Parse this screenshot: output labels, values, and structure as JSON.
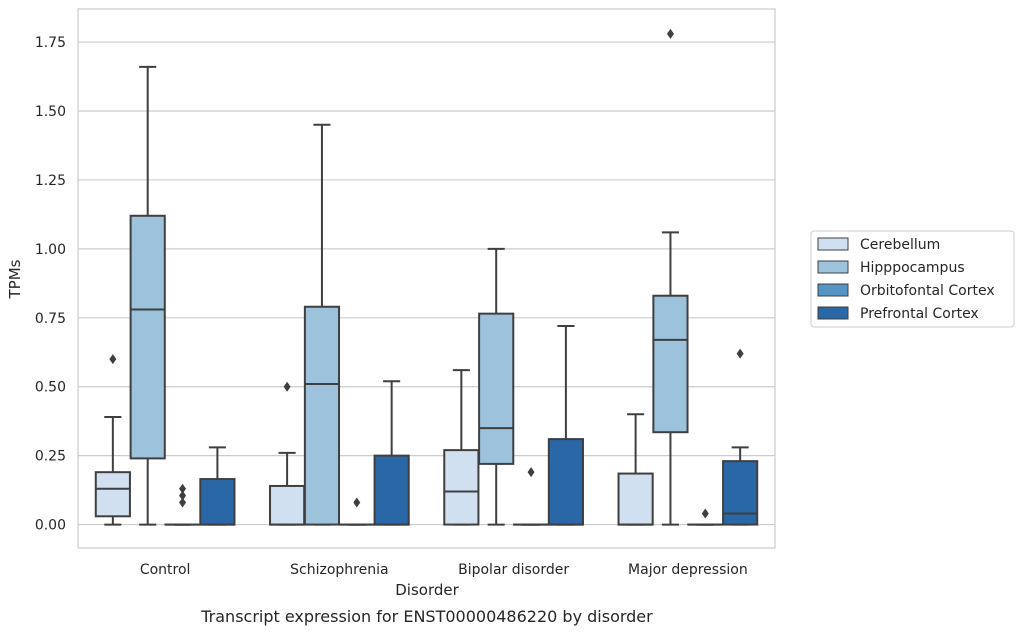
{
  "chart_data": {
    "type": "boxplot",
    "title": "",
    "caption": "Transcript expression for ENST00000486220 by disorder",
    "xlabel": "Disorder",
    "ylabel": "TPMs",
    "ylim": [
      -0.085,
      1.87
    ],
    "yticks": [
      "0.00",
      "0.25",
      "0.50",
      "0.75",
      "1.00",
      "1.25",
      "1.50",
      "1.75"
    ],
    "ytick_values": [
      0,
      0.25,
      0.5,
      0.75,
      1.0,
      1.25,
      1.5,
      1.75
    ],
    "grid": "horizontal",
    "legend_position": "right",
    "categories": [
      "Control",
      "Schizophrenia",
      "Bipolar disorder",
      "Major depression"
    ],
    "series": [
      {
        "name": "Cerebellum",
        "color": "#d0e0f0",
        "boxes": [
          {
            "whislo": 0.0,
            "q1": 0.03,
            "med": 0.13,
            "q3": 0.19,
            "whishi": 0.39,
            "fliers": [
              0.6
            ]
          },
          {
            "whislo": 0.0,
            "q1": 0.0,
            "med": 0.0,
            "q3": 0.14,
            "whishi": 0.26,
            "fliers": [
              0.5
            ]
          },
          {
            "whislo": 0.0,
            "q1": 0.0,
            "med": 0.12,
            "q3": 0.27,
            "whishi": 0.56,
            "fliers": []
          },
          {
            "whislo": 0.0,
            "q1": 0.0,
            "med": 0.0,
            "q3": 0.185,
            "whishi": 0.4,
            "fliers": []
          }
        ]
      },
      {
        "name": "Hipppocampus",
        "color": "#9dc3dc",
        "boxes": [
          {
            "whislo": 0.0,
            "q1": 0.24,
            "med": 0.78,
            "q3": 1.12,
            "whishi": 1.66,
            "fliers": []
          },
          {
            "whislo": 0.0,
            "q1": 0.0,
            "med": 0.51,
            "q3": 0.79,
            "whishi": 1.45,
            "fliers": []
          },
          {
            "whislo": 0.0,
            "q1": 0.22,
            "med": 0.35,
            "q3": 0.765,
            "whishi": 1.0,
            "fliers": []
          },
          {
            "whislo": 0.0,
            "q1": 0.335,
            "med": 0.67,
            "q3": 0.83,
            "whishi": 1.06,
            "fliers": [
              1.78
            ]
          }
        ]
      },
      {
        "name": "Orbitofontal Cortex",
        "color": "#5495c5",
        "boxes": [
          {
            "whislo": 0.0,
            "q1": 0.0,
            "med": 0.0,
            "q3": 0.0,
            "whishi": 0.0,
            "fliers": [
              0.08,
              0.105,
              0.13
            ]
          },
          {
            "whislo": 0.0,
            "q1": 0.0,
            "med": 0.0,
            "q3": 0.0,
            "whishi": 0.0,
            "fliers": [
              0.08
            ]
          },
          {
            "whislo": 0.0,
            "q1": 0.0,
            "med": 0.0,
            "q3": 0.0,
            "whishi": 0.0,
            "fliers": [
              0.19
            ]
          },
          {
            "whislo": 0.0,
            "q1": 0.0,
            "med": 0.0,
            "q3": 0.0,
            "whishi": 0.0,
            "fliers": [
              0.04
            ]
          }
        ]
      },
      {
        "name": "Prefrontal Cortex",
        "color": "#2a67a6",
        "boxes": [
          {
            "whislo": 0.0,
            "q1": 0.0,
            "med": 0.0,
            "q3": 0.165,
            "whishi": 0.28,
            "fliers": []
          },
          {
            "whislo": 0.0,
            "q1": 0.0,
            "med": 0.0,
            "q3": 0.25,
            "whishi": 0.52,
            "fliers": []
          },
          {
            "whislo": 0.0,
            "q1": 0.0,
            "med": 0.0,
            "q3": 0.31,
            "whishi": 0.72,
            "fliers": []
          },
          {
            "whislo": 0.0,
            "q1": 0.0,
            "med": 0.04,
            "q3": 0.23,
            "whishi": 0.28,
            "fliers": [
              0.62
            ]
          }
        ]
      }
    ]
  }
}
